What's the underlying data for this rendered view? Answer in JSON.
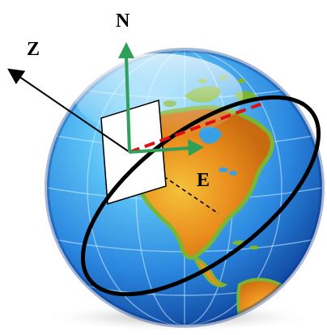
{
  "labels": {
    "north": "N",
    "east": "E",
    "zenith": "Z"
  },
  "colors": {
    "background": "#ffffff",
    "ocean_light": "#8fdcff",
    "ocean_mid": "#2f8fe0",
    "ocean_dark": "#0b3f9c",
    "land_green": "#7ab534",
    "land_orange": "#e98b1c",
    "land_yellow": "#f2c33c",
    "axis_green": "#2fa05a",
    "great_circle": "#000000",
    "dashed_path": "#e01010",
    "plane_fill": "#ffffff",
    "plane_stroke": "#000000",
    "shadow": "#bcbcbc"
  }
}
